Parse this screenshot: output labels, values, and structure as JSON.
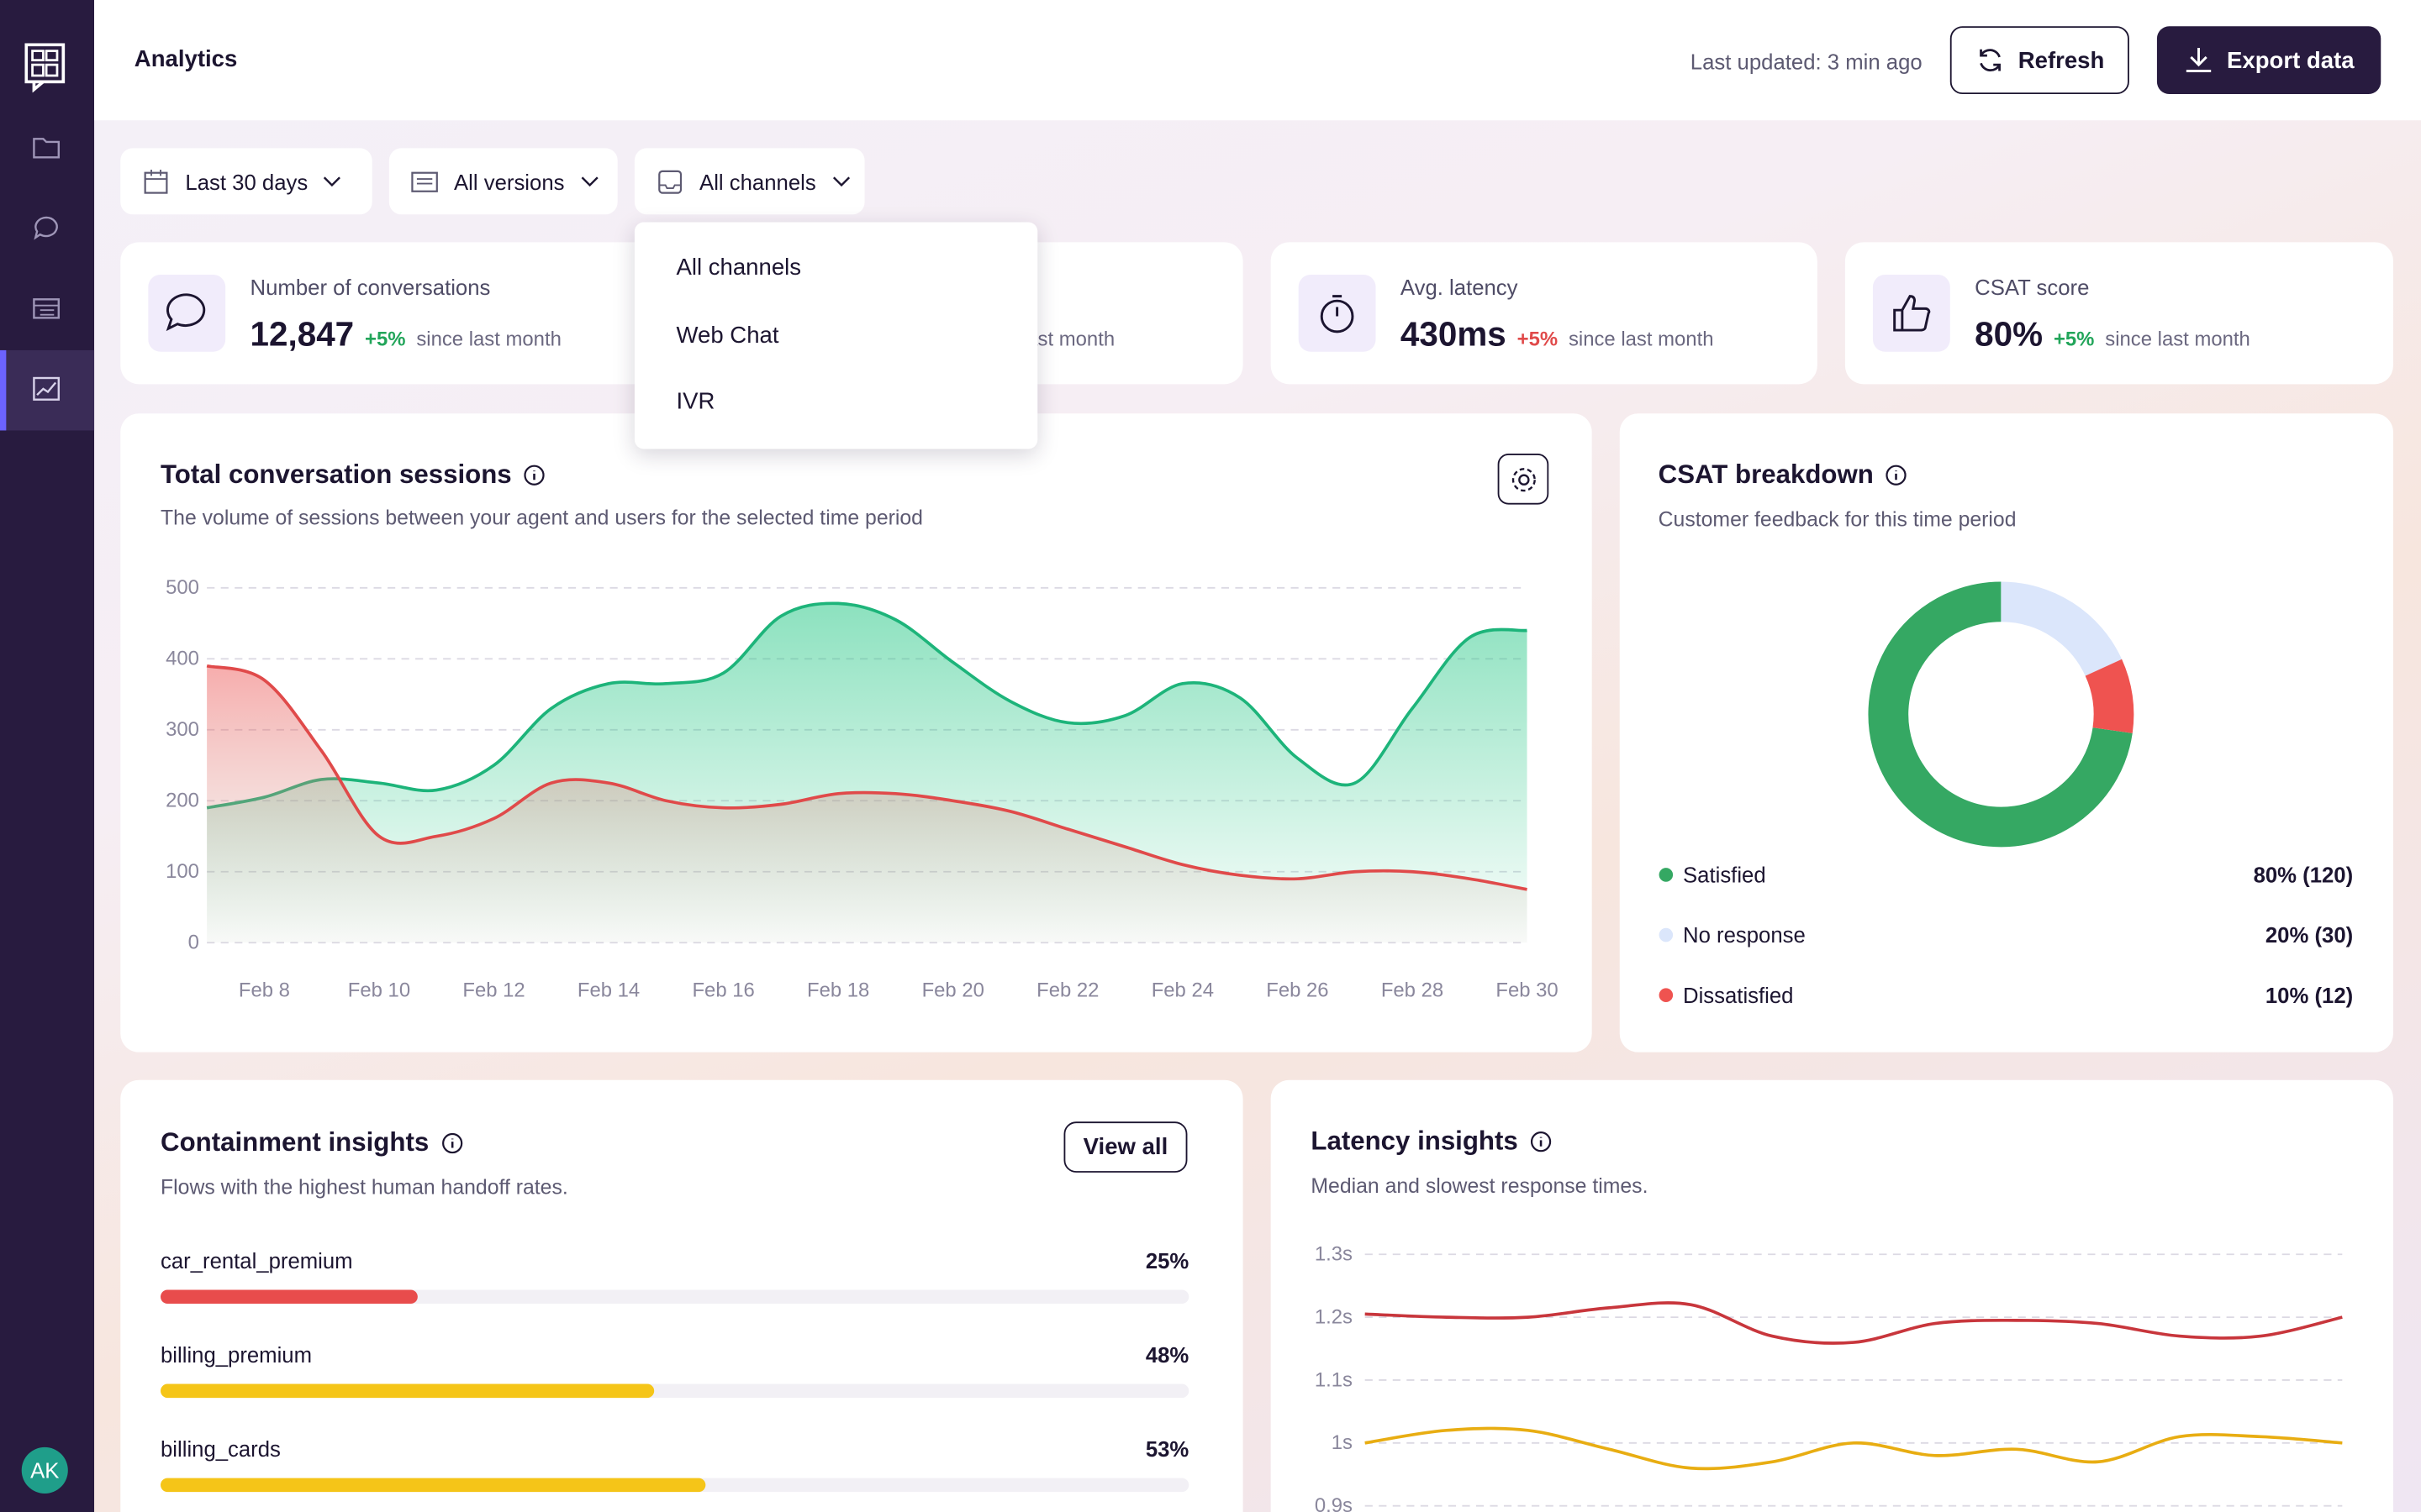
{
  "sidebar": {
    "avatar": "AK"
  },
  "header": {
    "title": "Analytics",
    "last_updated": "Last updated: 3 min ago",
    "refresh": "Refresh",
    "export": "Export data"
  },
  "filters": [
    "Last 30 days",
    "All versions",
    "All channels"
  ],
  "dropdown": [
    "All channels",
    "Web Chat",
    "IVR"
  ],
  "kpis": [
    {
      "label": "Number of conversations",
      "value": "12,847",
      "delta": "+5%",
      "note": "since last month"
    },
    {
      "note": "since last month"
    },
    {
      "label": "Avg. latency",
      "value": "430ms",
      "delta": "+5%",
      "note": "since last month"
    },
    {
      "label": "CSAT score",
      "value": "80%",
      "delta": "+5%",
      "note": "since last month"
    }
  ],
  "chart_data": [
    {
      "type": "area",
      "title": "Total conversation sessions",
      "subtitle": "The volume of sessions between your agent and users for the selected time period",
      "categories": [
        null,
        "Feb 8",
        null,
        "Feb 10",
        null,
        "Feb 12",
        null,
        "Feb 14",
        null,
        "Feb 16",
        null,
        "Feb 18",
        null,
        "Feb 20",
        null,
        "Feb 22",
        null,
        "Feb 24",
        null,
        "Feb 26",
        null,
        "Feb 28",
        null,
        "Feb 30"
      ],
      "series": [
        {
          "color": "#1db47a",
          "values": [
            190,
            205,
            230,
            225,
            215,
            250,
            330,
            365,
            365,
            380,
            460,
            478,
            455,
            395,
            340,
            310,
            320,
            365,
            345,
            260,
            225,
            330,
            430,
            440
          ]
        },
        {
          "color": "#e04a4a",
          "values": [
            390,
            370,
            270,
            150,
            150,
            175,
            225,
            225,
            200,
            190,
            195,
            210,
            210,
            200,
            185,
            160,
            135,
            110,
            95,
            90,
            100,
            100,
            90,
            75
          ]
        }
      ],
      "ylim": [
        0,
        500
      ],
      "yticks": [
        0,
        100,
        200,
        300,
        400,
        500
      ],
      "grid": true
    },
    {
      "type": "donut",
      "title": "CSAT breakdown",
      "subtitle": "Customer feedback for this time period",
      "categories": [
        "Satisfied",
        "No response",
        "Dissatisfied"
      ],
      "values": [
        80,
        20,
        10
      ],
      "value_labels": [
        "80% (120)",
        "20% (30)",
        "10% (12)"
      ],
      "colors": [
        "#35a863",
        "#dbe6fb",
        "#ef5350"
      ]
    },
    {
      "type": "progress",
      "title": "Containment insights",
      "subtitle": "Flows with the highest human handoff rates.",
      "button": "View all",
      "categories": [
        "car_rental_premium",
        "billing_premium",
        "billing_cards"
      ],
      "values": [
        25,
        48,
        53
      ],
      "value_labels": [
        "25%",
        "48%",
        "53%"
      ],
      "colors": [
        "#e84c4c",
        "#f5c518",
        "#f5c518"
      ],
      "xlim": [
        0,
        100
      ]
    },
    {
      "type": "line",
      "title": "Latency insights",
      "subtitle": "Median and slowest response times.",
      "series": [
        {
          "color": "#c8363c",
          "values": [
            1.205,
            1.2,
            1.2,
            1.215,
            1.22,
            1.17,
            1.16,
            1.19,
            1.195,
            1.19,
            1.17,
            1.17,
            1.2
          ]
        },
        {
          "color": "#e8ad12",
          "values": [
            1.0,
            1.02,
            1.02,
            0.99,
            0.96,
            0.97,
            1.0,
            0.98,
            0.99,
            0.97,
            1.01,
            1.01,
            1.0
          ]
        }
      ],
      "ylim": [
        0.9,
        1.3
      ],
      "yticks": [
        {
          "value": 0.9,
          "label": "0.9s"
        },
        {
          "value": 1.0,
          "label": "1s"
        },
        {
          "value": 1.1,
          "label": "1.1s"
        },
        {
          "value": 1.2,
          "label": "1.2s"
        },
        {
          "value": 1.3,
          "label": "1.3s"
        }
      ],
      "grid": true
    }
  ]
}
